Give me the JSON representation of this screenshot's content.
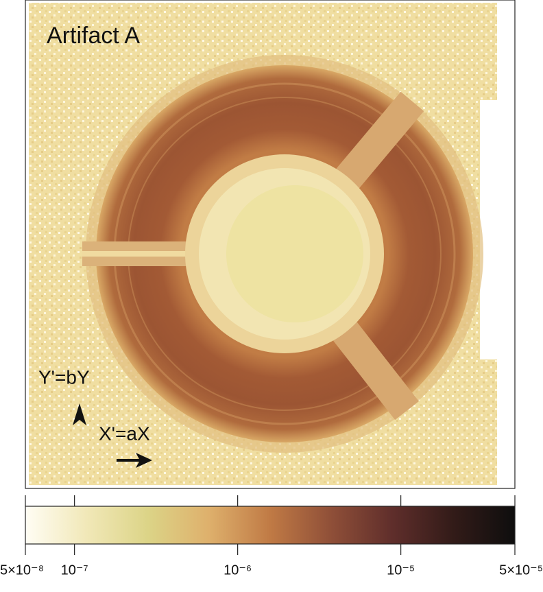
{
  "chart_data": {
    "type": "heatmap",
    "title": "Artifact A",
    "annotations": [
      "Y'=bY",
      "X'=aX"
    ],
    "colorbar": {
      "lim": [
        5e-08,
        5e-05
      ],
      "log": true,
      "ticks": [
        {
          "value": 5e-08,
          "label": "5×10⁻⁸"
        },
        {
          "value": 1e-07,
          "label": "10⁻⁷"
        },
        {
          "value": 1e-06,
          "label": "10⁻⁶"
        },
        {
          "value": 1e-05,
          "label": "10⁻⁵"
        },
        {
          "value": 5e-05,
          "label": "5×10⁻⁵"
        }
      ],
      "colors": [
        "#fffdf4",
        "#f1e8b8",
        "#dcd487",
        "#deb06c",
        "#c07a45",
        "#8f4f38",
        "#5f2e2b",
        "#321b18",
        "#0e0e0e"
      ]
    }
  }
}
